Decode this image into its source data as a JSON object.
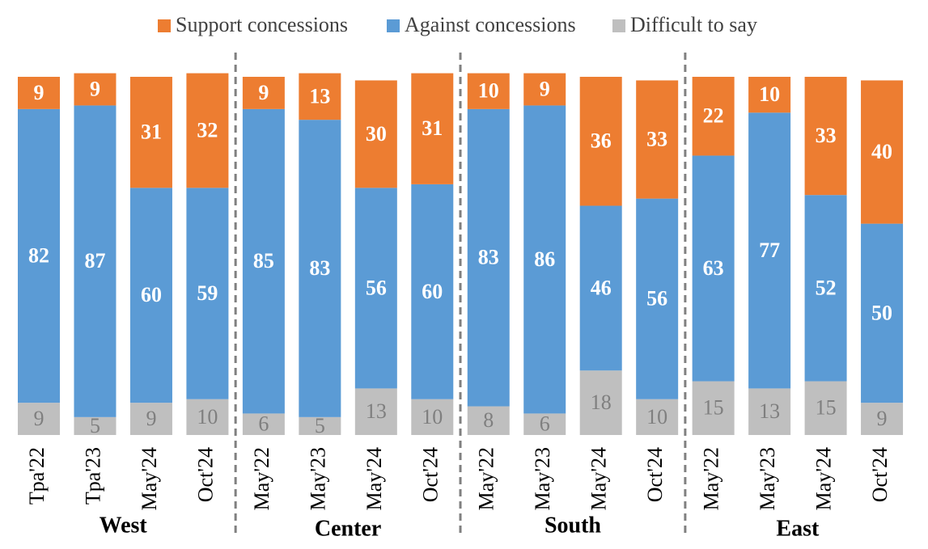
{
  "chart_data": {
    "type": "stacked_bar",
    "categories": [
      "Tpa'22",
      "Tpa'23",
      "May'24",
      "Oct'24",
      "May'22",
      "May'23",
      "May'24",
      "Oct'24",
      "May'22",
      "May'23",
      "May'24",
      "Oct'24",
      "May'22",
      "May'23",
      "May'24",
      "Oct'24"
    ],
    "groups": [
      "West",
      "Center",
      "South",
      "East"
    ],
    "series": [
      {
        "name": "Support concessions",
        "color": "#ed7d31",
        "label_color": "#ffffff",
        "values": [
          9,
          9,
          31,
          32,
          9,
          13,
          30,
          31,
          10,
          9,
          36,
          33,
          22,
          10,
          33,
          40
        ]
      },
      {
        "name": "Against concessions",
        "color": "#5b9bd5",
        "label_color": "#ffffff",
        "values": [
          82,
          87,
          60,
          59,
          85,
          83,
          56,
          60,
          83,
          86,
          46,
          56,
          63,
          77,
          52,
          50
        ]
      },
      {
        "name": "Difficult to say",
        "color": "#bfbfbf",
        "label_color": "#7f7f7f",
        "values": [
          9,
          5,
          9,
          10,
          6,
          5,
          13,
          10,
          8,
          6,
          18,
          10,
          15,
          13,
          15,
          9
        ]
      }
    ],
    "legend": "top"
  }
}
